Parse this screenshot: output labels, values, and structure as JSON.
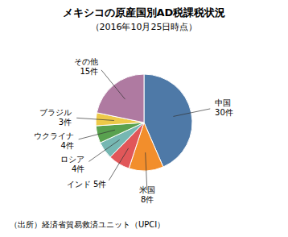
{
  "chart_data": {
    "type": "pie",
    "title": "メキシコの原産国別AD税課税状況",
    "subtitle": "（2016年10月25日時点）",
    "categories": [
      "中国\n30件",
      "米国\n8件",
      "インド 5件",
      "ロシア\n4件",
      "ウクライナ\n4件",
      "ブラジル\n3件",
      "その他\n15件"
    ],
    "values": [
      30,
      8,
      5,
      4,
      4,
      3,
      15
    ],
    "annotations": [
      "（出所）経済省貿易救済ユニット（UPCI）"
    ]
  }
}
